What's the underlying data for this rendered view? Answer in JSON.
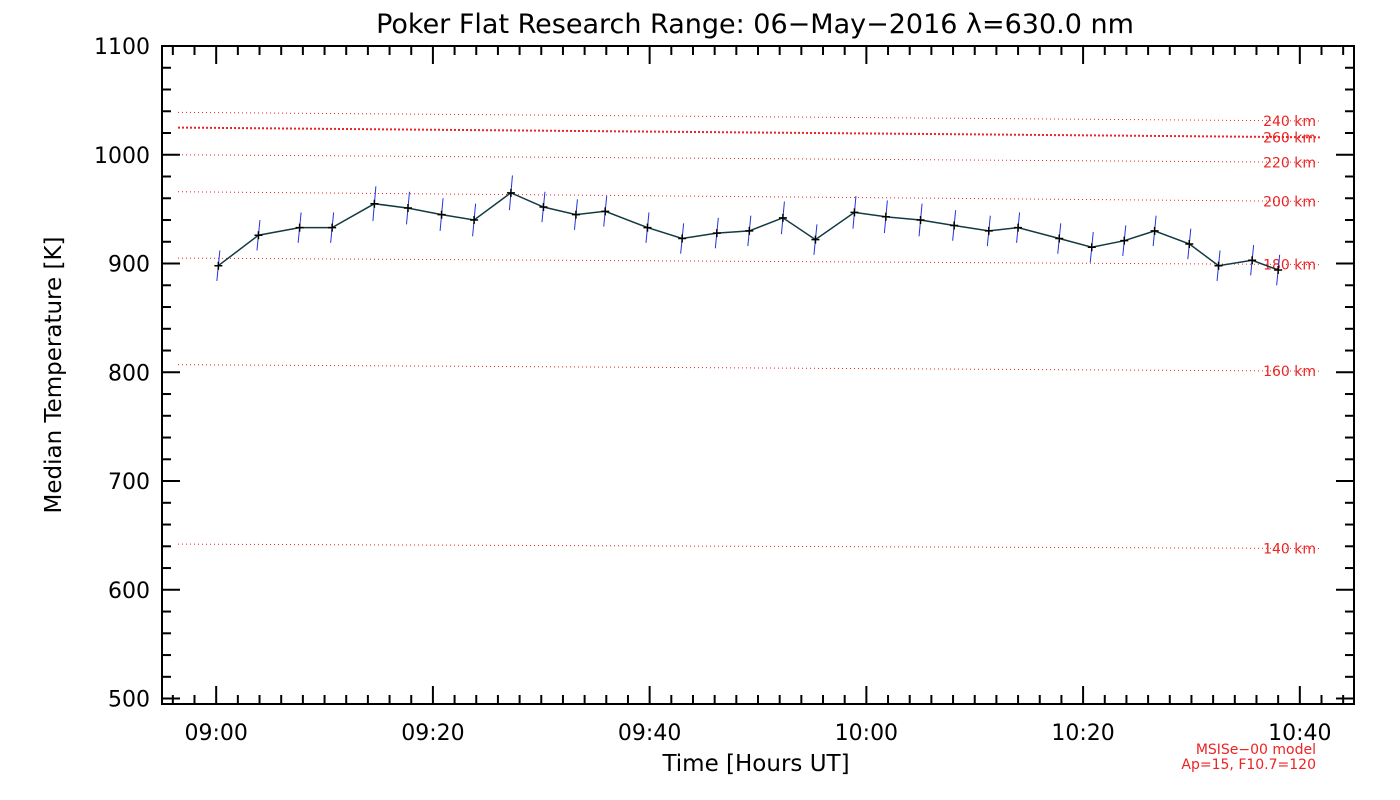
{
  "chart_data": {
    "type": "line",
    "title": "Poker Flat Research Range: 06−May−2016 λ=630.0 nm",
    "xlabel": "Time [Hours UT]",
    "ylabel": "Median Temperature [K]",
    "xlim_minutes": [
      535,
      645
    ],
    "ylim": [
      495,
      1100
    ],
    "x_ticks": [
      {
        "value": 540,
        "label": "09:00"
      },
      {
        "value": 560,
        "label": "09:20"
      },
      {
        "value": 580,
        "label": "09:40"
      },
      {
        "value": 600,
        "label": "10:00"
      },
      {
        "value": 620,
        "label": "10:20"
      },
      {
        "value": 640,
        "label": "10:40"
      }
    ],
    "y_ticks": [
      500,
      600,
      700,
      800,
      900,
      1000,
      1100
    ],
    "series": [
      {
        "name": "Median Temperature",
        "color": "#123a44",
        "marker_color": "#000000",
        "errorbar_color": "#2233dd",
        "points": [
          {
            "t": 540.2,
            "temp": 898,
            "err": 14
          },
          {
            "t": 543.9,
            "temp": 926,
            "err": 14
          },
          {
            "t": 547.7,
            "temp": 933,
            "err": 14
          },
          {
            "t": 550.7,
            "temp": 933,
            "err": 14
          },
          {
            "t": 554.6,
            "temp": 955,
            "err": 16
          },
          {
            "t": 557.7,
            "temp": 951,
            "err": 15
          },
          {
            "t": 560.8,
            "temp": 945,
            "err": 15
          },
          {
            "t": 563.8,
            "temp": 940,
            "err": 15
          },
          {
            "t": 567.2,
            "temp": 965,
            "err": 16
          },
          {
            "t": 570.2,
            "temp": 952,
            "err": 14
          },
          {
            "t": 573.2,
            "temp": 945,
            "err": 14
          },
          {
            "t": 575.9,
            "temp": 948,
            "err": 14
          },
          {
            "t": 579.8,
            "temp": 933,
            "err": 14
          },
          {
            "t": 583.0,
            "temp": 923,
            "err": 14
          },
          {
            "t": 586.2,
            "temp": 928,
            "err": 14
          },
          {
            "t": 589.2,
            "temp": 930,
            "err": 14
          },
          {
            "t": 592.3,
            "temp": 942,
            "err": 15
          },
          {
            "t": 595.3,
            "temp": 922,
            "err": 14
          },
          {
            "t": 598.9,
            "temp": 947,
            "err": 15
          },
          {
            "t": 601.8,
            "temp": 943,
            "err": 15
          },
          {
            "t": 605.0,
            "temp": 940,
            "err": 15
          },
          {
            "t": 608.1,
            "temp": 935,
            "err": 14
          },
          {
            "t": 611.3,
            "temp": 930,
            "err": 14
          },
          {
            "t": 614.0,
            "temp": 933,
            "err": 14
          },
          {
            "t": 617.8,
            "temp": 923,
            "err": 14
          },
          {
            "t": 620.8,
            "temp": 915,
            "err": 14
          },
          {
            "t": 623.8,
            "temp": 921,
            "err": 14
          },
          {
            "t": 626.6,
            "temp": 930,
            "err": 14
          },
          {
            "t": 629.8,
            "temp": 918,
            "err": 14
          },
          {
            "t": 632.5,
            "temp": 898,
            "err": 14
          },
          {
            "t": 635.6,
            "temp": 903,
            "err": 14
          },
          {
            "t": 638.0,
            "temp": 894,
            "err": 14
          }
        ]
      }
    ],
    "reference_lines": [
      {
        "label": "140 km",
        "temp_start": 642,
        "temp_end": 638,
        "color": "#ee2222"
      },
      {
        "label": "160 km",
        "temp_start": 807,
        "temp_end": 801,
        "color": "#ee2222"
      },
      {
        "label": "180 km",
        "temp_start": 905,
        "temp_end": 899,
        "color": "#ee2222"
      },
      {
        "label": "200 km",
        "temp_start": 966,
        "temp_end": 957,
        "color": "#ee2222"
      },
      {
        "label": "220 km",
        "temp_start": 1000,
        "temp_end": 993,
        "color": "#ee2222"
      },
      {
        "label": "240 km",
        "temp_start": 1039,
        "temp_end": 1031,
        "color": "#ee2222"
      },
      {
        "label": "260 km",
        "temp_start": 1025,
        "temp_end": 1016,
        "color": "#ee2222",
        "emphasized": true
      }
    ],
    "footnote_lines": [
      "MSISe−00 model",
      "Ap=15, F10.7=120"
    ]
  }
}
